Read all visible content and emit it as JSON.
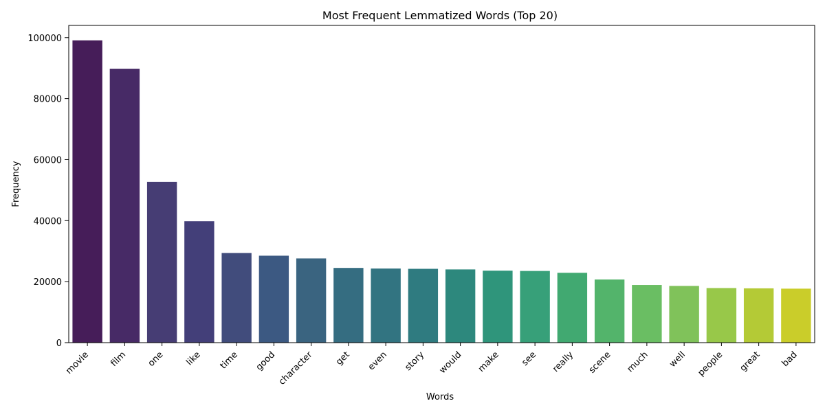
{
  "chart_data": {
    "type": "bar",
    "title": "Most Frequent Lemmatized Words (Top 20)",
    "xlabel": "Words",
    "ylabel": "Frequency",
    "ylim": [
      0,
      104000
    ],
    "yticks": [
      0,
      20000,
      40000,
      60000,
      80000,
      100000
    ],
    "ytick_labels": [
      "0",
      "20000",
      "40000",
      "60000",
      "80000",
      "100000"
    ],
    "categories": [
      "movie",
      "film",
      "one",
      "like",
      "time",
      "good",
      "character",
      "get",
      "even",
      "story",
      "would",
      "make",
      "see",
      "really",
      "scene",
      "much",
      "well",
      "people",
      "great",
      "bad"
    ],
    "values": [
      99100,
      89800,
      52700,
      39800,
      29400,
      28500,
      27600,
      24500,
      24300,
      24200,
      24000,
      23600,
      23500,
      22900,
      20700,
      18900,
      18600,
      17900,
      17800,
      17700
    ],
    "colors": [
      "#461d59",
      "#472a66",
      "#463d74",
      "#433f79",
      "#414c7c",
      "#3c5982",
      "#3a6480",
      "#356d81",
      "#327481",
      "#2f7b80",
      "#2d887d",
      "#2f957b",
      "#37a079",
      "#41a971",
      "#53b46b",
      "#6abe63",
      "#80c25a",
      "#98c849",
      "#b4ca36",
      "#cacd2a"
    ],
    "grid": false,
    "legend": "none"
  }
}
